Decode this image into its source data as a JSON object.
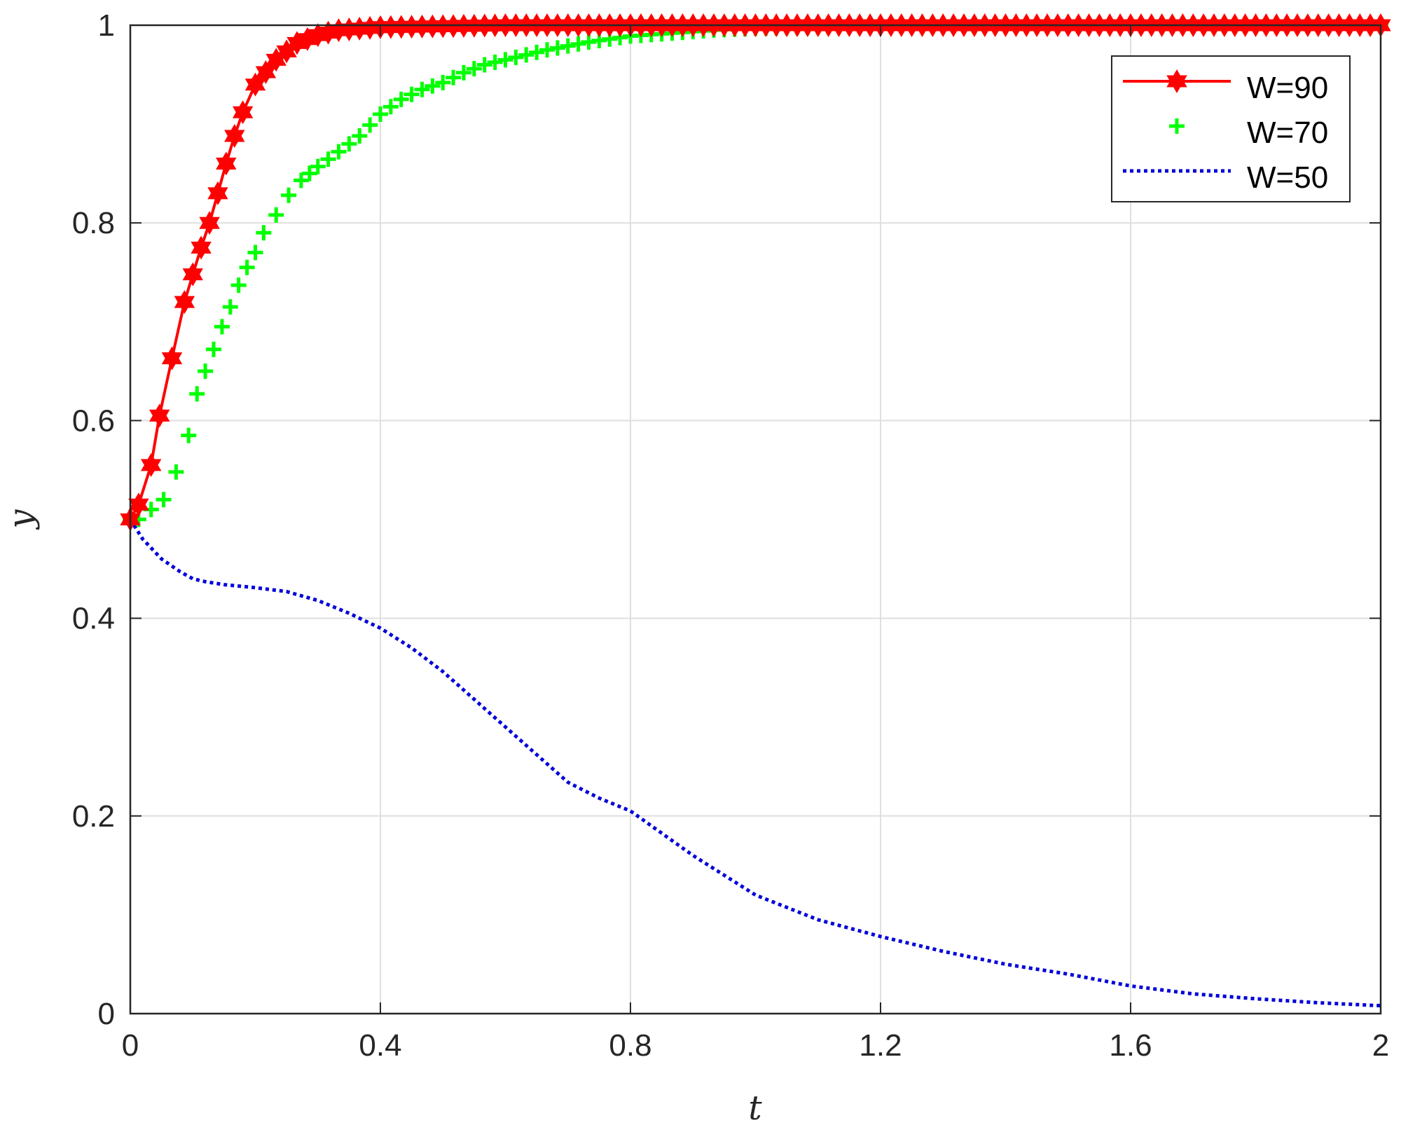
{
  "chart_data": {
    "type": "line",
    "title": "",
    "xlabel": "t",
    "ylabel": "y",
    "xlim": [
      0,
      2
    ],
    "ylim": [
      0,
      1
    ],
    "xticks": [
      0,
      0.4,
      0.8,
      1.2,
      1.6,
      2
    ],
    "xtick_labels": [
      "0",
      "0.4",
      "0.8",
      "1.2",
      "1.6",
      "2"
    ],
    "yticks": [
      0,
      0.2,
      0.4,
      0.6,
      0.8,
      1
    ],
    "ytick_labels": [
      "0",
      "0.2",
      "0.4",
      "0.6",
      "0.8",
      "1"
    ],
    "grid": true,
    "legend_position": "top-right",
    "series": [
      {
        "name": "W=90",
        "color": "#ff0000",
        "line_style": "solid",
        "marker": "hexagram",
        "x": [
          0,
          0.0133,
          0.0333,
          0.0467,
          0.0667,
          0.0867,
          0.1,
          0.1133,
          0.1267,
          0.14,
          0.1533,
          0.1667,
          0.18,
          0.2,
          0.2333,
          0.2667,
          0.3,
          0.3333,
          0.4,
          0.5,
          0.6,
          0.8,
          1.0,
          1.2,
          1.4,
          1.6,
          1.8,
          2.0
        ],
        "y": [
          0.5,
          0.515,
          0.555,
          0.605,
          0.663,
          0.72,
          0.748,
          0.775,
          0.8,
          0.83,
          0.86,
          0.888,
          0.912,
          0.94,
          0.965,
          0.982,
          0.99,
          0.995,
          0.998,
          0.999,
          1.0,
          1.0,
          1.0,
          1.0,
          1.0,
          1.0,
          1.0,
          1.0
        ]
      },
      {
        "name": "W=70",
        "color": "#00ff00",
        "line_style": "none",
        "marker": "plus",
        "x": [
          0,
          0.0133,
          0.0333,
          0.0533,
          0.0733,
          0.0933,
          0.1067,
          0.12,
          0.1333,
          0.1467,
          0.16,
          0.1733,
          0.1867,
          0.2,
          0.2133,
          0.2333,
          0.2533,
          0.2733,
          0.3,
          0.3333,
          0.3667,
          0.4,
          0.4333,
          0.4667,
          0.5,
          0.5333,
          0.5667,
          0.6,
          0.6333,
          0.6667,
          0.7,
          0.7333,
          0.7667,
          0.8,
          0.8667,
          0.9333,
          1.0,
          1.1,
          1.2,
          1.4,
          1.6,
          1.8,
          2.0
        ],
        "y": [
          0.5,
          0.5,
          0.51,
          0.52,
          0.548,
          0.585,
          0.627,
          0.65,
          0.672,
          0.695,
          0.715,
          0.737,
          0.755,
          0.77,
          0.79,
          0.808,
          0.828,
          0.843,
          0.857,
          0.872,
          0.888,
          0.91,
          0.925,
          0.935,
          0.942,
          0.952,
          0.96,
          0.965,
          0.97,
          0.975,
          0.979,
          0.983,
          0.986,
          0.989,
          0.992,
          0.995,
          0.997,
          0.998,
          0.999,
          1.0,
          1.0,
          1.0,
          1.0
        ]
      },
      {
        "name": "W=50",
        "color": "#0000d9",
        "line_style": "dotted",
        "marker": "none",
        "x": [
          0,
          0.02,
          0.05,
          0.08,
          0.1,
          0.12,
          0.15,
          0.2,
          0.25,
          0.3,
          0.35,
          0.4,
          0.45,
          0.5,
          0.55,
          0.6,
          0.65,
          0.7,
          0.75,
          0.8,
          0.9,
          1.0,
          1.1,
          1.2,
          1.3,
          1.4,
          1.5,
          1.6,
          1.7,
          1.8,
          1.9,
          2.0
        ],
        "y": [
          0.5,
          0.48,
          0.46,
          0.447,
          0.44,
          0.437,
          0.434,
          0.431,
          0.427,
          0.418,
          0.405,
          0.39,
          0.37,
          0.346,
          0.318,
          0.29,
          0.262,
          0.234,
          0.218,
          0.205,
          0.16,
          0.12,
          0.095,
          0.078,
          0.063,
          0.05,
          0.04,
          0.028,
          0.02,
          0.015,
          0.011,
          0.008
        ]
      }
    ]
  }
}
